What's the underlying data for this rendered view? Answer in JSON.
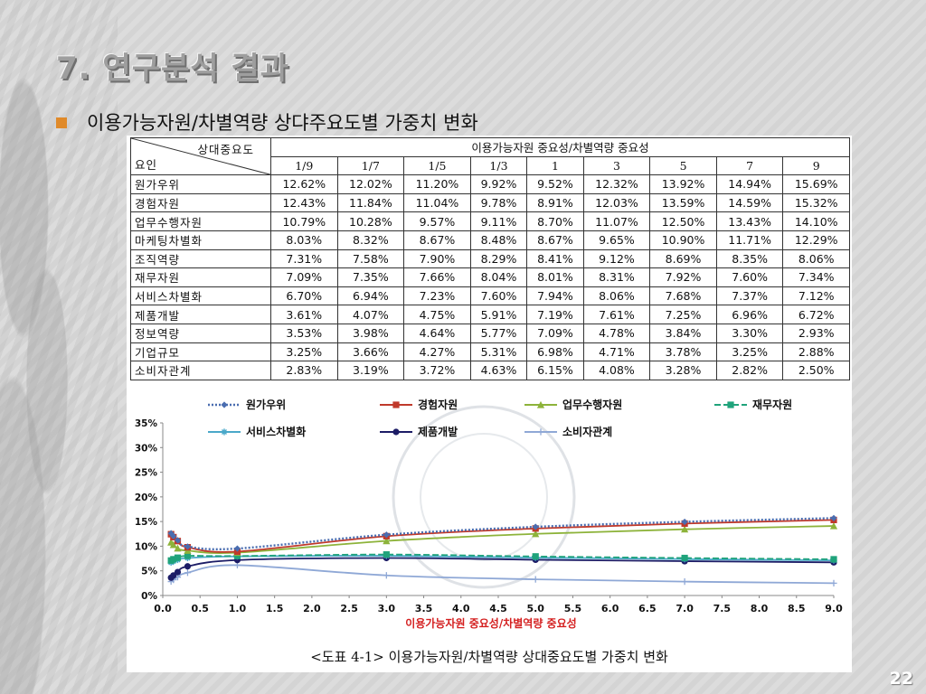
{
  "slide": {
    "title": "7. 연구분석 결과",
    "subtitle": "이용가능자원/차별역량 상댜주요도별 가중치 변화",
    "page_number": "22"
  },
  "table": {
    "corner_top": "상대중요도",
    "corner_bottom": "요인",
    "group_header": "이용가능자원 중요성/차별역량 중요성",
    "columns": [
      "1/9",
      "1/7",
      "1/5",
      "1/3",
      "1",
      "3",
      "5",
      "7",
      "9"
    ],
    "rows": [
      {
        "factor": "원가우위",
        "values": [
          "12.62%",
          "12.02%",
          "11.20%",
          "9.92%",
          "9.52%",
          "12.32%",
          "13.92%",
          "14.94%",
          "15.69%"
        ]
      },
      {
        "factor": "경험자원",
        "values": [
          "12.43%",
          "11.84%",
          "11.04%",
          "9.78%",
          "8.91%",
          "12.03%",
          "13.59%",
          "14.59%",
          "15.32%"
        ]
      },
      {
        "factor": "업무수행자원",
        "values": [
          "10.79%",
          "10.28%",
          "9.57%",
          "9.11%",
          "8.70%",
          "11.07%",
          "12.50%",
          "13.43%",
          "14.10%"
        ]
      },
      {
        "factor": "마케팅차별화",
        "values": [
          "8.03%",
          "8.32%",
          "8.67%",
          "8.48%",
          "8.67%",
          "9.65%",
          "10.90%",
          "11.71%",
          "12.29%"
        ]
      },
      {
        "factor": "조직역량",
        "values": [
          "7.31%",
          "7.58%",
          "7.90%",
          "8.29%",
          "8.41%",
          "9.12%",
          "8.69%",
          "8.35%",
          "8.06%"
        ]
      },
      {
        "factor": "재무자원",
        "values": [
          "7.09%",
          "7.35%",
          "7.66%",
          "8.04%",
          "8.01%",
          "8.31%",
          "7.92%",
          "7.60%",
          "7.34%"
        ]
      },
      {
        "factor": "서비스차별화",
        "values": [
          "6.70%",
          "6.94%",
          "7.23%",
          "7.60%",
          "7.94%",
          "8.06%",
          "7.68%",
          "7.37%",
          "7.12%"
        ]
      },
      {
        "factor": "제품개발",
        "values": [
          "3.61%",
          "4.07%",
          "4.75%",
          "5.91%",
          "7.19%",
          "7.61%",
          "7.25%",
          "6.96%",
          "6.72%"
        ]
      },
      {
        "factor": "정보역량",
        "values": [
          "3.53%",
          "3.98%",
          "4.64%",
          "5.77%",
          "7.09%",
          "4.78%",
          "3.84%",
          "3.30%",
          "2.93%"
        ]
      },
      {
        "factor": "기업규모",
        "values": [
          "3.25%",
          "3.66%",
          "4.27%",
          "5.31%",
          "6.98%",
          "4.71%",
          "3.78%",
          "3.25%",
          "2.88%"
        ]
      },
      {
        "factor": "소비자관계",
        "values": [
          "2.83%",
          "3.19%",
          "3.72%",
          "4.63%",
          "6.15%",
          "4.08%",
          "3.28%",
          "2.82%",
          "2.50%"
        ]
      }
    ]
  },
  "chart_data": {
    "type": "line",
    "x": [
      0.111,
      0.143,
      0.2,
      0.333,
      1,
      3,
      5,
      7,
      9
    ],
    "xlim": [
      0,
      9
    ],
    "ylim": [
      0,
      35
    ],
    "x_ticks": [
      "0.0",
      "0.5",
      "1.0",
      "1.5",
      "2.0",
      "2.5",
      "3.0",
      "3.5",
      "4.0",
      "4.5",
      "5.0",
      "5.5",
      "6.0",
      "6.5",
      "7.0",
      "7.5",
      "8.0",
      "8.5",
      "9.0"
    ],
    "y_ticks": [
      "0%",
      "5%",
      "10%",
      "15%",
      "20%",
      "25%",
      "30%",
      "35%"
    ],
    "xlabel": "이용가능자원 중요성/차별역량 중요성",
    "caption": "<도표 4-1> 이용가능자원/차별역량 상대중요도별 가중치 변화",
    "legend_position": "top",
    "series": [
      {
        "name": "원가우위",
        "color": "#4a6db0",
        "dash": "dotted",
        "marker": "diamond",
        "values": [
          12.62,
          12.02,
          11.2,
          9.92,
          9.52,
          12.32,
          13.92,
          14.94,
          15.69
        ]
      },
      {
        "name": "경험자원",
        "color": "#c0392b",
        "dash": "solid",
        "marker": "square",
        "values": [
          12.43,
          11.84,
          11.04,
          9.78,
          8.91,
          12.03,
          13.59,
          14.59,
          15.32
        ]
      },
      {
        "name": "업무수행자원",
        "color": "#8db33a",
        "dash": "solid",
        "marker": "triangle",
        "values": [
          10.79,
          10.28,
          9.57,
          9.11,
          8.7,
          11.07,
          12.5,
          13.43,
          14.1
        ]
      },
      {
        "name": "재무자원",
        "color": "#1fa37b",
        "dash": "dashed",
        "marker": "square",
        "values": [
          7.09,
          7.35,
          7.66,
          8.04,
          8.01,
          8.31,
          7.92,
          7.6,
          7.34
        ]
      },
      {
        "name": "서비스차별화",
        "color": "#4aa8c9",
        "dash": "solid",
        "marker": "asterisk",
        "values": [
          6.7,
          6.94,
          7.23,
          7.6,
          7.94,
          8.06,
          7.68,
          7.37,
          7.12
        ]
      },
      {
        "name": "제품개발",
        "color": "#1c1c66",
        "dash": "solid",
        "marker": "circle",
        "values": [
          3.61,
          4.07,
          4.75,
          5.91,
          7.19,
          7.61,
          7.25,
          6.96,
          6.72
        ]
      },
      {
        "name": "소비자관계",
        "color": "#8fa8d6",
        "dash": "solid",
        "marker": "plus",
        "values": [
          2.83,
          3.19,
          3.72,
          4.63,
          6.15,
          4.08,
          3.28,
          2.82,
          2.5
        ]
      }
    ]
  }
}
